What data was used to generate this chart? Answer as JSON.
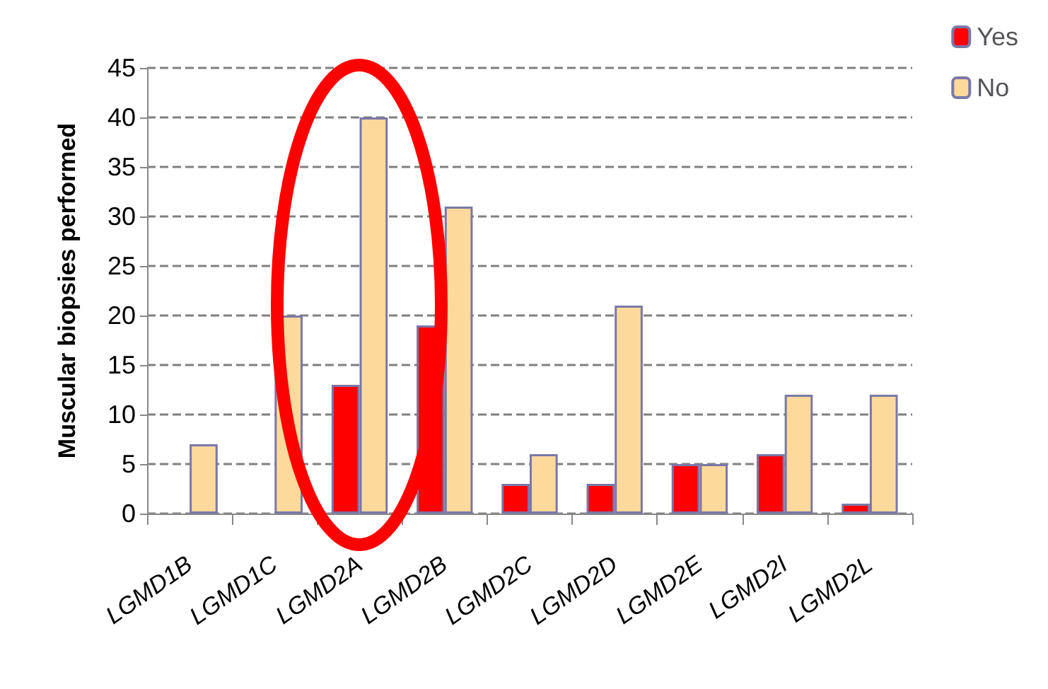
{
  "chart_data": {
    "type": "bar",
    "ylabel": "Muscular biopsies performed",
    "categories": [
      "LGMD1B",
      "LGMD1C",
      "LGMD2A",
      "LGMD2B",
      "LGMD2C",
      "LGMD2D",
      "LGMD2E",
      "LGMD2I",
      "LGMD2L"
    ],
    "series": [
      {
        "name": "Yes",
        "color": "#ff0000",
        "values": [
          null,
          null,
          13,
          19,
          3,
          3,
          5,
          6,
          1
        ]
      },
      {
        "name": "No",
        "color": "#fdd99b",
        "values": [
          7,
          20,
          40,
          31,
          6,
          21,
          5,
          12,
          12
        ]
      }
    ],
    "ylim": [
      0,
      45
    ],
    "yticks": [
      0,
      5,
      10,
      15,
      20,
      25,
      30,
      35,
      40,
      45
    ],
    "grid": "y",
    "line_style": "dashed",
    "legend": "top right"
  }
}
